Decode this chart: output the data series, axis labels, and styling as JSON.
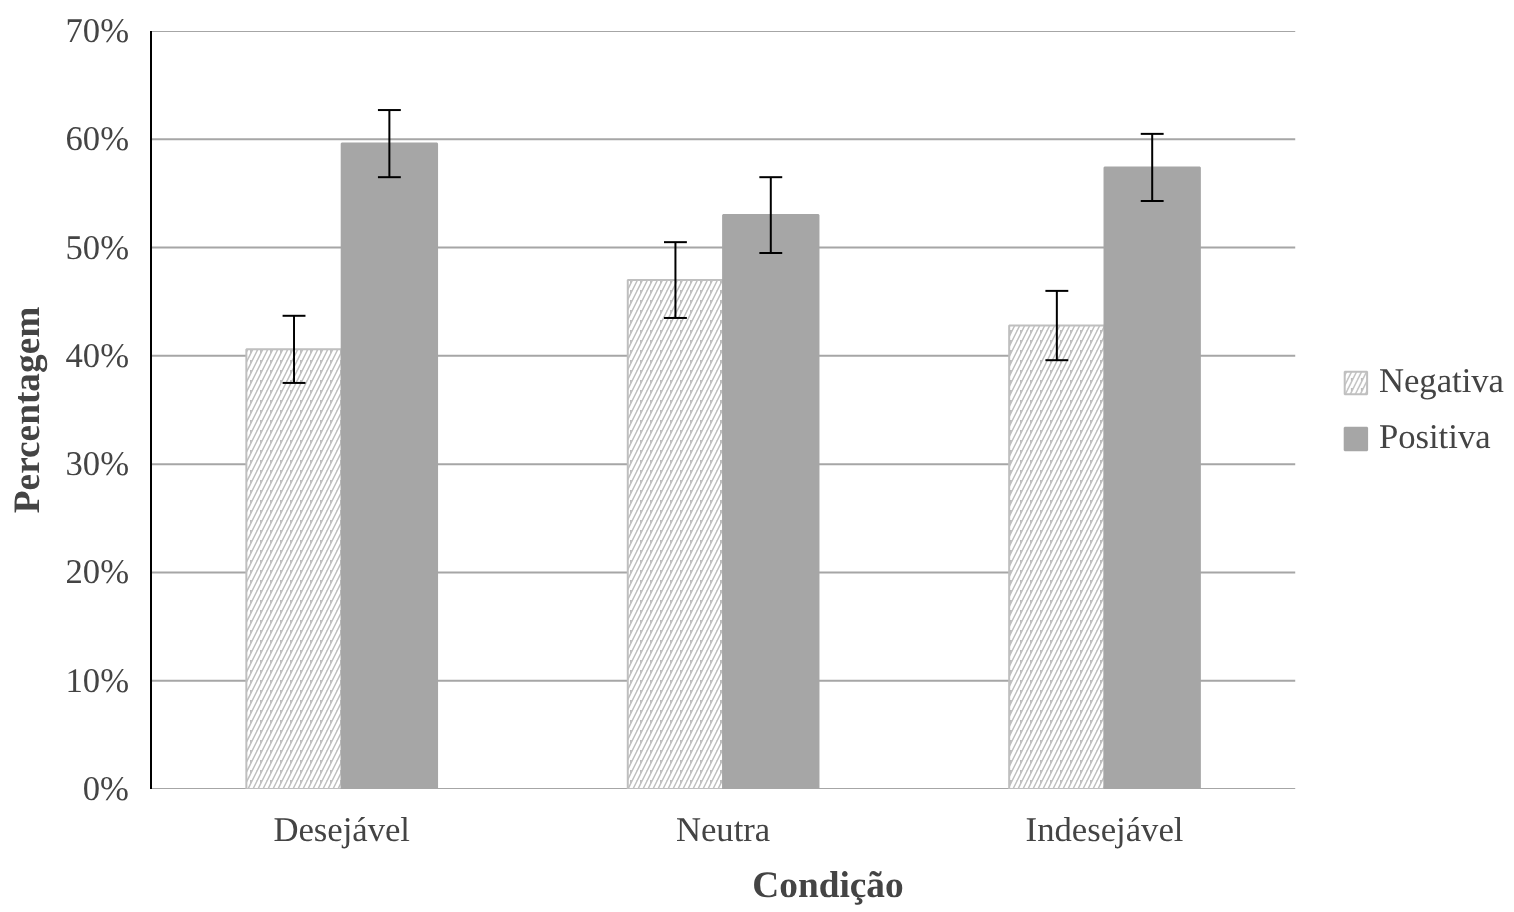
{
  "chart_data": {
    "type": "bar",
    "xlabel": "Condição",
    "ylabel": "Percentagem",
    "categories": [
      "Desejável",
      "Neutra",
      "Indesejável"
    ],
    "series": [
      {
        "name": "Negativa",
        "color": "#bfbfbf",
        "values": [
          40.6,
          47.0,
          42.8
        ],
        "errors": [
          3.1,
          3.5,
          3.2
        ]
      },
      {
        "name": "Positiva",
        "color": "#a6a6a6",
        "values": [
          59.6,
          53.0,
          57.4
        ],
        "errors": [
          3.1,
          3.5,
          3.1
        ]
      }
    ],
    "ylim": [
      0,
      70
    ],
    "yticks": [
      {
        "value": 0,
        "label": "0%"
      },
      {
        "value": 10,
        "label": "10%"
      },
      {
        "value": 20,
        "label": "20%"
      },
      {
        "value": 30,
        "label": "30%"
      },
      {
        "value": 40,
        "label": "40%"
      },
      {
        "value": 50,
        "label": "50%"
      },
      {
        "value": 60,
        "label": "60%"
      },
      {
        "value": 70,
        "label": "70%"
      }
    ],
    "grid": "y",
    "legend": "right"
  }
}
